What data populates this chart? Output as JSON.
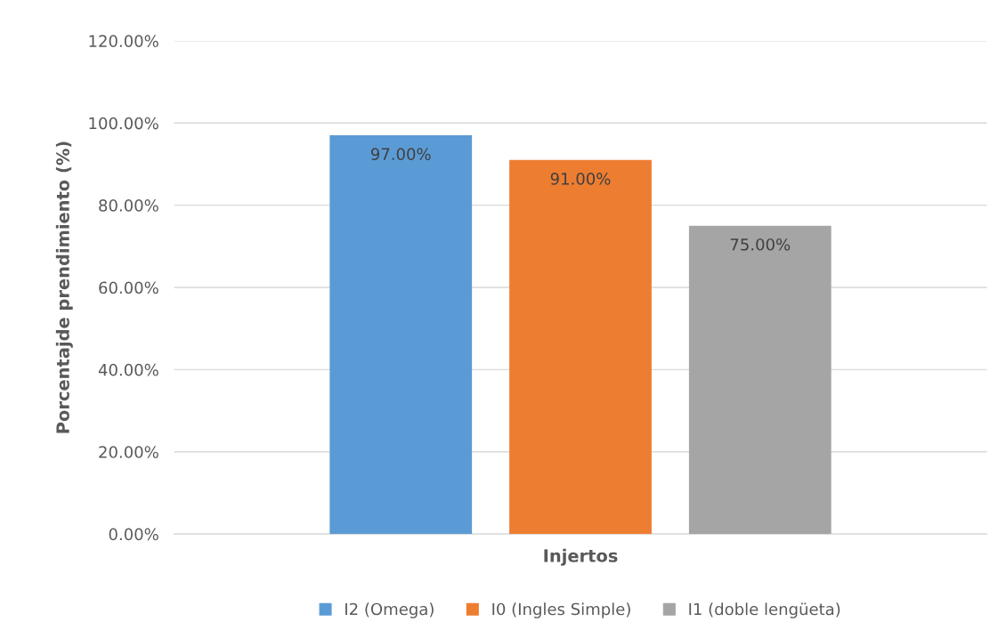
{
  "chart_data": {
    "type": "bar",
    "xlabel": null,
    "ylabel": "Porcentajde prendimiento (%)",
    "categories": [
      "Injertos"
    ],
    "series": [
      {
        "name": "I2 (Omega)",
        "color": "#5b9bd5",
        "values": [
          97
        ],
        "value_labels": [
          "97.00%"
        ]
      },
      {
        "name": "I0 (Ingles Simple)",
        "color": "#ed7d31",
        "values": [
          91
        ],
        "value_labels": [
          "91.00%"
        ]
      },
      {
        "name": "I1 (doble lengüeta)",
        "color": "#a5a5a5",
        "values": [
          75
        ],
        "value_labels": [
          "75.00%"
        ]
      }
    ],
    "ylim": [
      0,
      120
    ],
    "yticks": [
      {
        "value": 0,
        "label": "0.00%"
      },
      {
        "value": 20,
        "label": "20.00%"
      },
      {
        "value": 40,
        "label": "40.00%"
      },
      {
        "value": 60,
        "label": "60.00%"
      },
      {
        "value": 80,
        "label": "80.00%"
      },
      {
        "value": 100,
        "label": "100.00%"
      },
      {
        "value": 120,
        "label": "120.00%"
      }
    ],
    "grid": "y",
    "legend": "bottom"
  }
}
